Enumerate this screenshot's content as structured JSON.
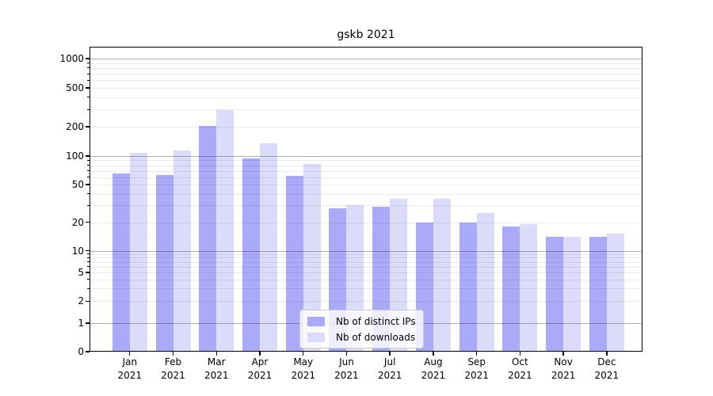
{
  "chart_data": {
    "type": "bar",
    "title": "gskb 2021",
    "categories": [
      "Jan 2021",
      "Feb 2021",
      "Mar 2021",
      "Apr 2021",
      "May 2021",
      "Jun 2021",
      "Jul 2021",
      "Aug 2021",
      "Sep 2021",
      "Oct 2021",
      "Nov 2021",
      "Dec 2021"
    ],
    "series": [
      {
        "name": "Nb of distinct IPs",
        "color": "#aaaaf8",
        "values": [
          65,
          63,
          205,
          95,
          62,
          28,
          29,
          20,
          20,
          18,
          14,
          14
        ]
      },
      {
        "name": "Nb of downloads",
        "color": "#dcdcfa",
        "values": [
          108,
          114,
          295,
          135,
          83,
          30,
          35,
          35,
          25,
          19,
          14,
          15
        ]
      }
    ],
    "xlabel": "",
    "ylabel": "",
    "yscale": "symlog",
    "ylim": [
      0,
      1300
    ],
    "y_tick_values": [
      1000,
      500,
      200,
      100,
      50,
      20,
      10,
      5,
      2,
      1,
      0
    ],
    "y_tick_labels": [
      "1000",
      "500",
      "200",
      "100",
      "50",
      "20",
      "10",
      "5",
      "2",
      "1",
      "0"
    ],
    "grid": true,
    "grid_major_color": "#b0b0b0",
    "grid_minor_color": "#e8e8e8",
    "legend_position": "lower center"
  }
}
